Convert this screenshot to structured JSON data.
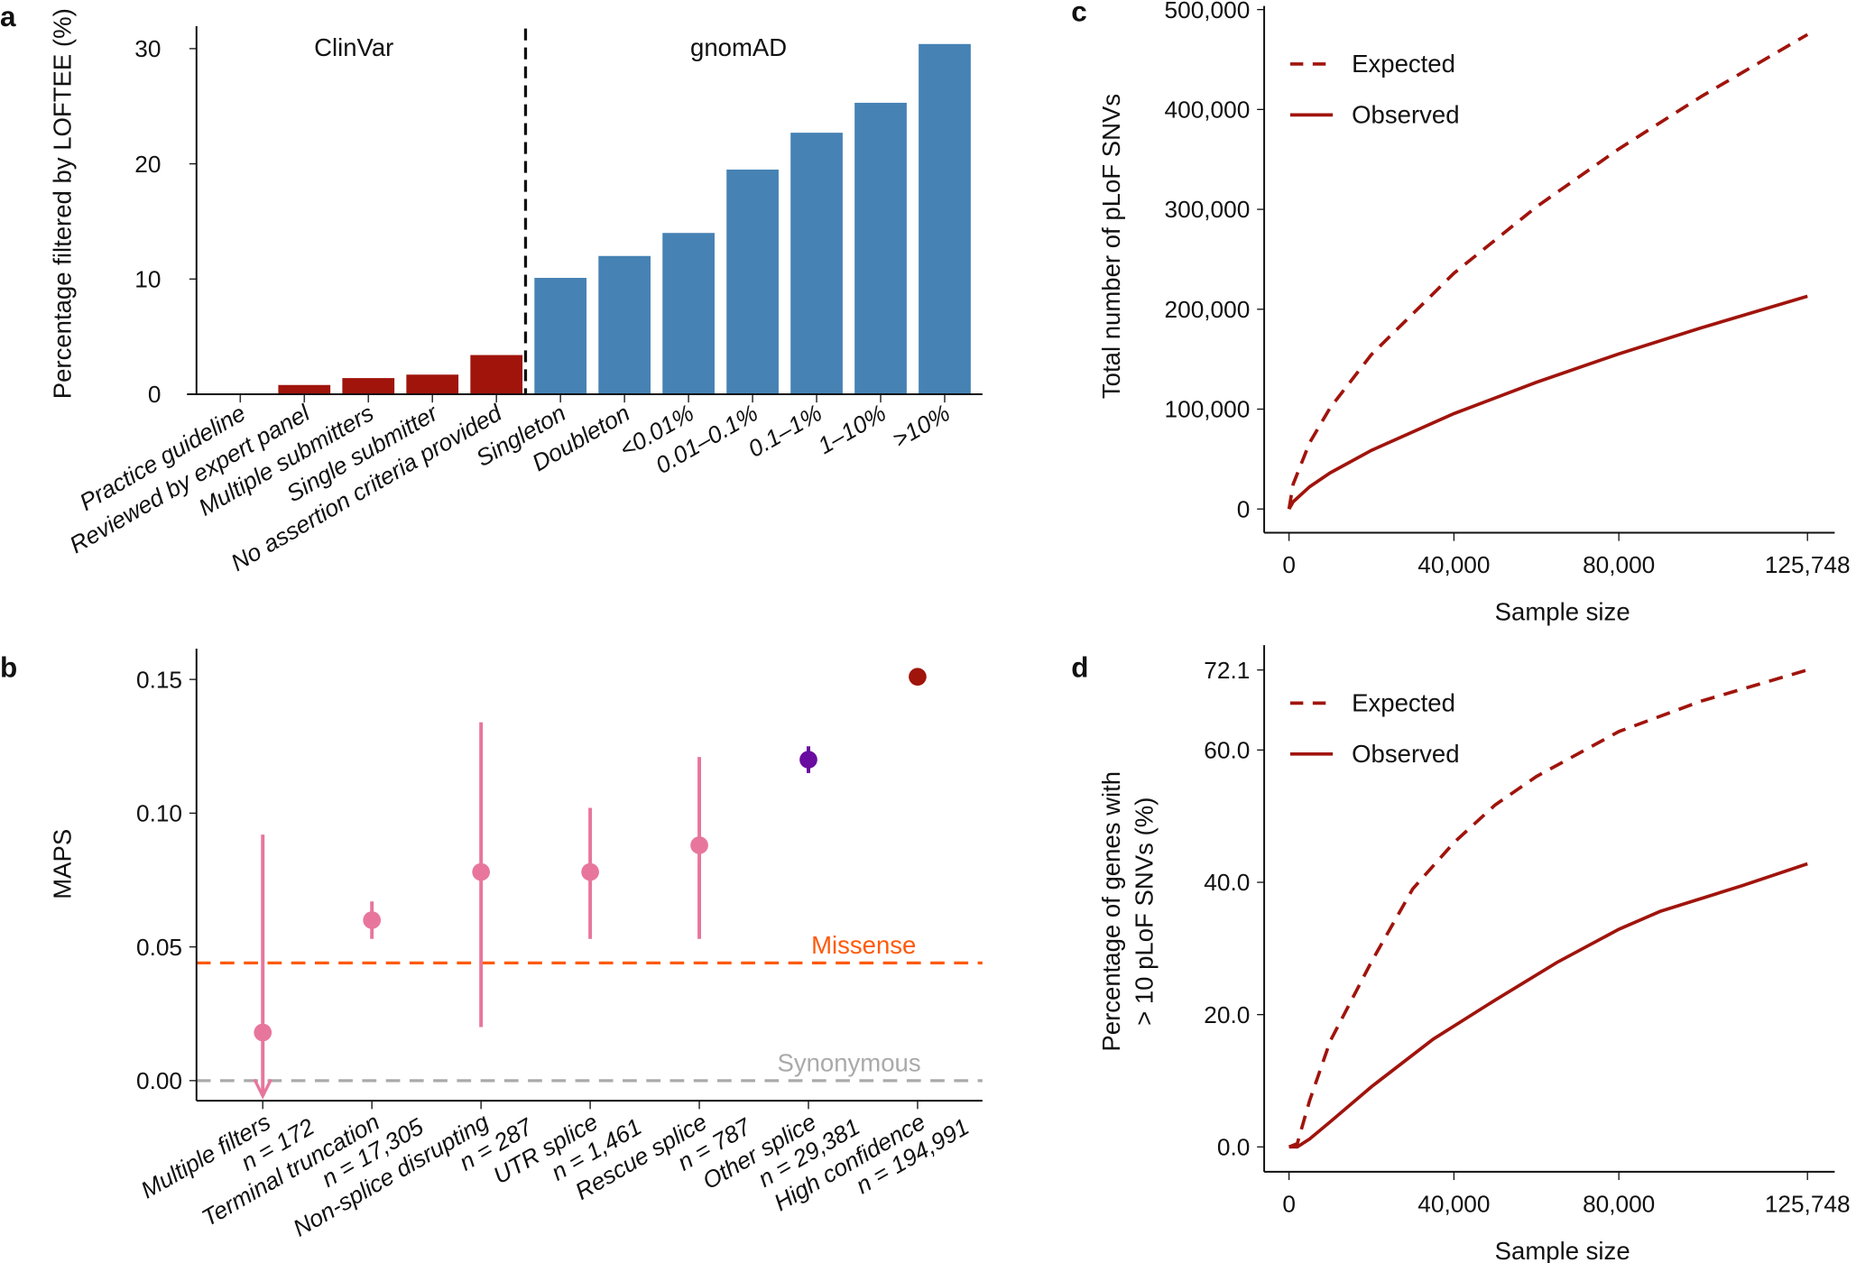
{
  "chart_data": [
    {
      "panel": "a",
      "type": "bar",
      "ylabel": "Percentage filtered by LOFTEE (%)",
      "ylim": [
        0,
        32
      ],
      "yticks": [
        0,
        10,
        20,
        30
      ],
      "group_labels": [
        "ClinVar",
        "gnomAD"
      ],
      "categories": [
        "Practice guideline",
        "Reviewed by expert panel",
        "Multiple submitters",
        "Single submitter",
        "No assertion criteria provided",
        "Singleton",
        "Doubleton",
        "<0.01%",
        "0.01–0.1%",
        "0.1–1%",
        "1–10%",
        ">10%"
      ],
      "values": [
        0,
        0.8,
        1.4,
        1.7,
        3.4,
        10.1,
        12.0,
        14.0,
        19.5,
        22.7,
        25.3,
        30.4
      ],
      "groups": [
        "ClinVar",
        "ClinVar",
        "ClinVar",
        "ClinVar",
        "ClinVar",
        "gnomAD",
        "gnomAD",
        "gnomAD",
        "gnomAD",
        "gnomAD",
        "gnomAD",
        "gnomAD"
      ],
      "colors": {
        "ClinVar": "#a0140c",
        "gnomAD": "#4682b4"
      }
    },
    {
      "panel": "b",
      "type": "scatter",
      "ylabel": "MAPS",
      "ylim": [
        -0.007,
        0.16
      ],
      "yticks": [
        "0.00",
        "0.05",
        "0.10",
        "0.15"
      ],
      "categories": [
        {
          "label": "Multiple filters",
          "n": "n = 172",
          "value": 0.018,
          "lo": -0.01,
          "hi": 0.092,
          "color": "#e8769c",
          "arrow": true
        },
        {
          "label": "Terminal truncation",
          "n": "n = 17,305",
          "value": 0.06,
          "lo": 0.053,
          "hi": 0.067,
          "color": "#e8769c"
        },
        {
          "label": "Non-splice disrupting",
          "n": "n = 287",
          "value": 0.078,
          "lo": 0.02,
          "hi": 0.134,
          "color": "#e8769c"
        },
        {
          "label": "UTR splice",
          "n": "n = 1,461",
          "value": 0.078,
          "lo": 0.053,
          "hi": 0.102,
          "color": "#e8769c"
        },
        {
          "label": "Rescue splice",
          "n": "n = 787",
          "value": 0.088,
          "lo": 0.053,
          "hi": 0.121,
          "color": "#e8769c"
        },
        {
          "label": "Other splice",
          "n": "n = 29,381",
          "value": 0.12,
          "lo": 0.115,
          "hi": 0.125,
          "color": "#6a0ca0"
        },
        {
          "label": "High confidence",
          "n": "n = 194,991",
          "value": 0.151,
          "lo": 0.151,
          "hi": 0.151,
          "color": "#a0140c"
        }
      ],
      "reference_lines": [
        {
          "label": "Missense",
          "value": 0.044,
          "color": "#ff5a0a"
        },
        {
          "label": "Synonymous",
          "value": 0.0,
          "color": "#aaaaaa"
        }
      ]
    },
    {
      "panel": "c",
      "type": "line",
      "xlabel": "Sample size",
      "ylabel": "Total number of pLoF SNVs",
      "xlim": [
        0,
        125748
      ],
      "ylim": [
        0,
        500000
      ],
      "xticks": [
        "0",
        "40,000",
        "80,000",
        "125,748"
      ],
      "xtick_values": [
        0,
        40000,
        80000,
        125748
      ],
      "yticks": [
        "0",
        "100,000",
        "200,000",
        "300,000",
        "400,000",
        "500,000"
      ],
      "ytick_values": [
        0,
        100000,
        200000,
        300000,
        400000,
        500000
      ],
      "legend": "top-left",
      "x": [
        0,
        1000,
        5000,
        10000,
        20000,
        40000,
        60000,
        80000,
        100000,
        125748
      ],
      "series": [
        {
          "name": "Expected",
          "style": "dashed",
          "color": "#a0140c",
          "values": [
            0,
            24900,
            66400,
            101400,
            154700,
            236000,
            302500,
            360500,
            413000,
            475000
          ]
        },
        {
          "name": "Observed",
          "style": "solid",
          "color": "#a0140c",
          "values": [
            0,
            7200,
            22300,
            36200,
            58800,
            95500,
            126900,
            155300,
            181400,
            213000
          ]
        }
      ]
    },
    {
      "panel": "d",
      "type": "line",
      "xlabel": "Sample size",
      "ylabel": "Percentage of genes with > 10 pLoF SNVs (%)",
      "ylabel_lines": [
        "Percentage of genes with",
        "> 10 pLoF SNVs (%)"
      ],
      "xlim": [
        0,
        125748
      ],
      "ylim": [
        -1,
        73
      ],
      "xticks": [
        "0",
        "40,000",
        "80,000",
        "125,748"
      ],
      "xtick_values": [
        0,
        40000,
        80000,
        125748
      ],
      "yticks": [
        "0.0",
        "20.0",
        "40.0",
        "60.0",
        "72.1"
      ],
      "ytick_values": [
        0,
        20,
        40,
        60,
        72.1
      ],
      "legend": "top-left",
      "series": [
        {
          "name": "Expected",
          "style": "dashed",
          "color": "#a0140c",
          "x": [
            0,
            2000,
            5000,
            10000,
            20000,
            30000,
            40000,
            50000,
            60000,
            80000,
            100000,
            125748
          ],
          "values": [
            0,
            0.5,
            7,
            16,
            28,
            39,
            46,
            51.7,
            56,
            62.8,
            67.4,
            72.1
          ]
        },
        {
          "name": "Observed",
          "style": "solid",
          "color": "#a0140c",
          "x": [
            0,
            2000,
            5000,
            10000,
            20000,
            35000,
            50000,
            65000,
            80000,
            90000,
            110000,
            125748
          ],
          "values": [
            0,
            0,
            1.2,
            3.8,
            9.1,
            16.3,
            22.2,
            27.9,
            32.9,
            35.6,
            39.5,
            42.8
          ]
        }
      ]
    }
  ]
}
